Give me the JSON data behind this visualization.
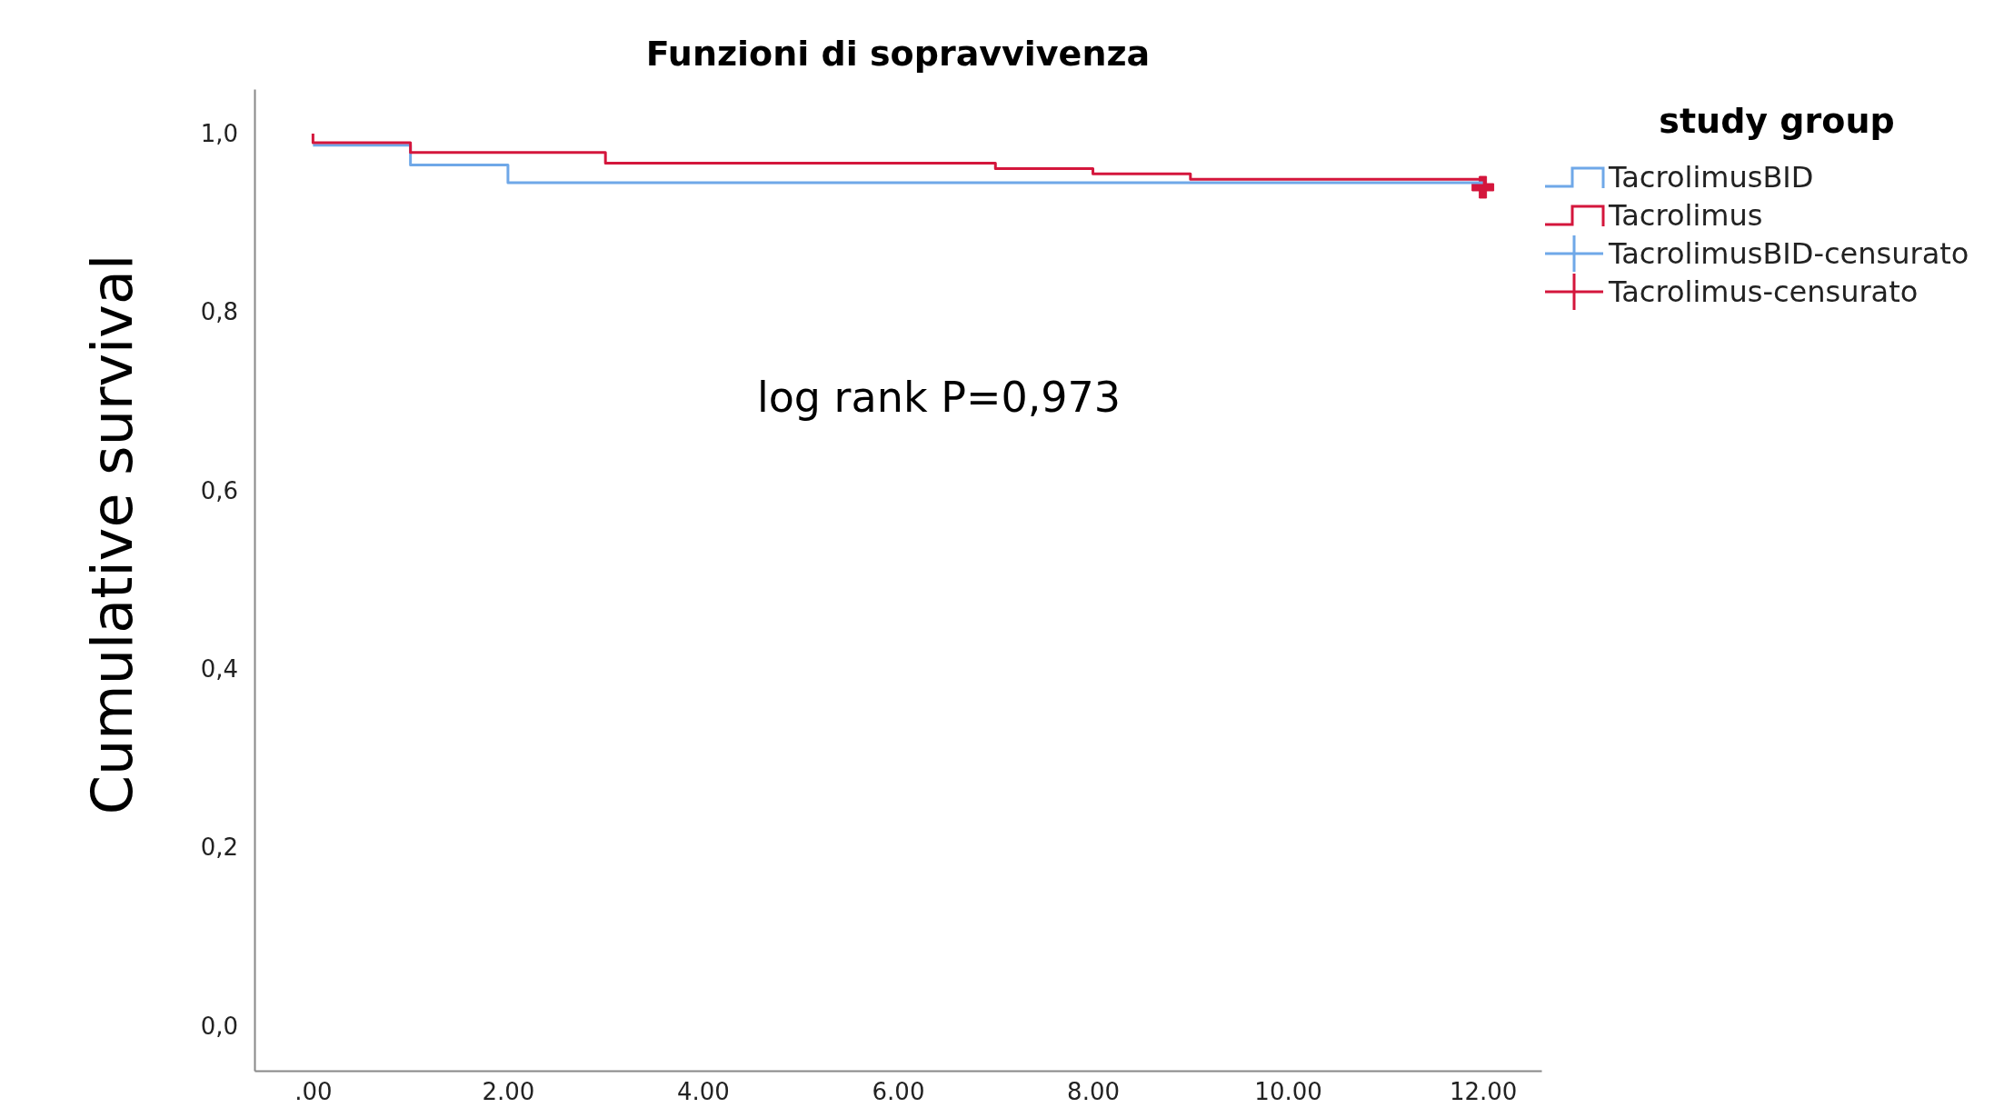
{
  "chart_data": {
    "type": "step",
    "title": "Funzioni di sopravvivenza",
    "ylabel": "Cumulative survival",
    "legend_title": "study group",
    "legend": "right",
    "annotations": [
      "log rank P=0,973"
    ],
    "xlim": [
      -0.6,
      12.6
    ],
    "ylim": [
      -0.05,
      1.05
    ],
    "xticks": [
      {
        "value": 0,
        "label": ".00"
      },
      {
        "value": 2,
        "label": "2.00"
      },
      {
        "value": 4,
        "label": "4.00"
      },
      {
        "value": 6,
        "label": "6.00"
      },
      {
        "value": 8,
        "label": "8.00"
      },
      {
        "value": 10,
        "label": "10.00"
      },
      {
        "value": 12,
        "label": "12.00"
      }
    ],
    "yticks": [
      {
        "value": 0,
        "label": "0,0"
      },
      {
        "value": 0.2,
        "label": "0,2"
      },
      {
        "value": 0.4,
        "label": "0,4"
      },
      {
        "value": 0.6,
        "label": "0,6"
      },
      {
        "value": 0.8,
        "label": "0,8"
      },
      {
        "value": 1,
        "label": "1,0"
      }
    ],
    "series": [
      {
        "name": "TacrolimusBID",
        "color": "#6fa8e8",
        "x": [
          0,
          1,
          2,
          12
        ],
        "values": [
          0.987,
          0.965,
          0.945,
          0.945
        ]
      },
      {
        "name": "Tacrolimus",
        "color": "#d4163c",
        "x": [
          0,
          0,
          1,
          3,
          7,
          8,
          9,
          12
        ],
        "values": [
          1,
          0.99,
          0.979,
          0.967,
          0.961,
          0.955,
          0.949,
          0.949
        ]
      },
      {
        "name": "TacrolimusBID-censurato",
        "type": "scatter",
        "marker": "cross",
        "color": "#6fa8e8"
      },
      {
        "name": "Tacrolimus-censurato",
        "type": "scatter",
        "marker": "cross",
        "color": "#d4163c",
        "x": [
          12
        ],
        "values": [
          0.94
        ]
      }
    ]
  }
}
